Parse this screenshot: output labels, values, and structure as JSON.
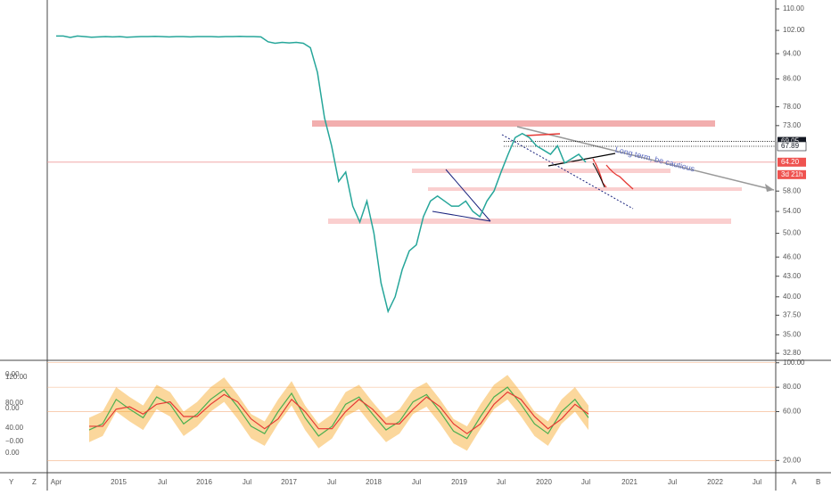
{
  "price_pane": {
    "scale": "log",
    "ylim": [
      32,
      113.5
    ],
    "yticks": [
      {
        "value": 110,
        "label": "110.00"
      },
      {
        "value": 102,
        "label": "102.00"
      },
      {
        "value": 94,
        "label": "94.00"
      },
      {
        "value": 86,
        "label": "86.00"
      },
      {
        "value": 78,
        "label": "78.00"
      },
      {
        "value": 73,
        "label": "73.00"
      },
      {
        "value": 58,
        "label": "58.00"
      },
      {
        "value": 54,
        "label": "54.00"
      },
      {
        "value": 50,
        "label": "50.00"
      },
      {
        "value": 46,
        "label": "46.00"
      },
      {
        "value": 43,
        "label": "43.00"
      },
      {
        "value": 40,
        "label": "40.00"
      },
      {
        "value": 37.5,
        "label": "37.50"
      },
      {
        "value": 35,
        "label": "35.00"
      },
      {
        "value": 32.8,
        "label": "32.80"
      }
    ],
    "badges": [
      {
        "value": 69.05,
        "label": "69.05"
      },
      {
        "value": 67.89,
        "label": "67.89"
      },
      {
        "value": 64.2,
        "label": "64.20"
      }
    ],
    "countdown": "3d 21h",
    "annotation": "Long term, be cautious",
    "price": {
      "color": "#26a69a",
      "values": [
        100,
        100,
        99.5,
        100,
        99.8,
        99.6,
        99.7,
        99.8,
        99.7,
        99.8,
        99.6,
        99.7,
        99.8,
        99.8,
        99.9,
        99.8,
        99.7,
        99.8,
        99.8,
        99.7,
        99.8,
        99.8,
        99.8,
        99.7,
        99.8,
        99.8,
        99.9,
        99.8,
        99.8,
        99.7,
        98,
        97.5,
        97.8,
        97.6,
        97.8,
        97.5,
        96,
        88,
        75,
        68,
        60,
        62,
        55,
        52,
        56,
        50,
        42,
        38,
        40,
        44,
        47,
        48,
        53,
        56,
        57,
        56,
        55,
        55,
        56,
        54,
        53,
        56,
        58,
        62,
        66,
        70,
        71,
        70,
        68,
        67,
        66,
        68,
        64,
        65,
        66,
        64.2
      ]
    }
  },
  "time_axis": [
    "Apr",
    "2015",
    "Jul",
    "2016",
    "Jul",
    "2017",
    "Jul",
    "2018",
    "Jul",
    "2019",
    "Jul",
    "2020",
    "Jul",
    "2021",
    "Jul",
    "2022",
    "Jul"
  ],
  "oscillator": {
    "ylim": [
      10,
      102
    ],
    "left_labels": [
      "0.00",
      "120.00",
      "80.00",
      "0.00",
      "40.00",
      "−0.00",
      "0.00"
    ],
    "yticks": [
      {
        "value": 100,
        "label": "100.00"
      },
      {
        "value": 80,
        "label": "80.00"
      },
      {
        "value": 60,
        "label": "60.00"
      },
      {
        "value": 20,
        "label": "20.00"
      }
    ],
    "series": [
      {
        "color": "#4caf50",
        "values": [
          45,
          50,
          70,
          62,
          55,
          72,
          66,
          50,
          58,
          70,
          78,
          64,
          48,
          42,
          60,
          75,
          55,
          40,
          48,
          66,
          72,
          58,
          45,
          52,
          68,
          74,
          60,
          44,
          38,
          56,
          72,
          80,
          66,
          50,
          42,
          60,
          70,
          55
        ]
      },
      {
        "color": "#e53935",
        "values": [
          48,
          48,
          62,
          64,
          58,
          66,
          68,
          56,
          56,
          66,
          74,
          68,
          54,
          46,
          54,
          70,
          60,
          46,
          46,
          60,
          70,
          62,
          50,
          50,
          62,
          72,
          64,
          50,
          42,
          50,
          66,
          76,
          70,
          56,
          46,
          54,
          66,
          58
        ]
      }
    ]
  },
  "bottom_bar": {
    "left": [
      "Y",
      "Z"
    ],
    "right": [
      "A",
      "B"
    ]
  }
}
